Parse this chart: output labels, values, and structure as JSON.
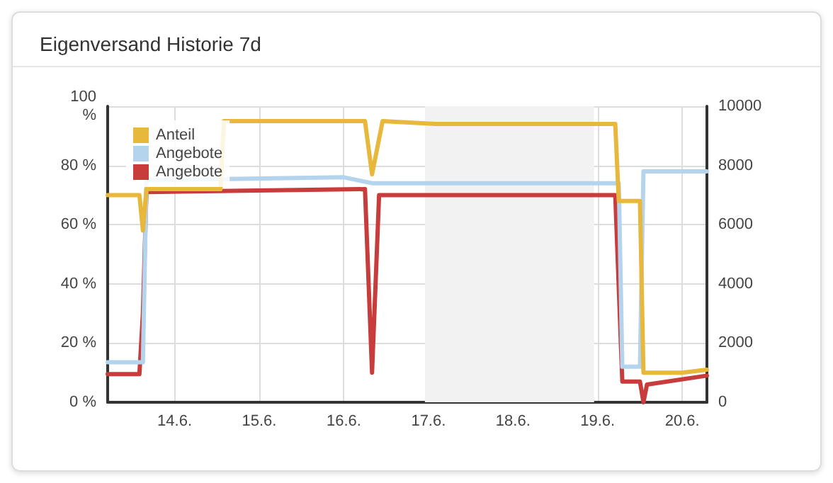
{
  "chart_data": {
    "type": "line",
    "title": "Eigenversand Historie 7d",
    "xlim": [
      "--06-13T05:00",
      "--06-20T07:00"
    ],
    "xticks": [
      {
        "value": "--06-14",
        "label": "14.6."
      },
      {
        "value": "--06-15",
        "label": "15.6."
      },
      {
        "value": "--06-16",
        "label": "16.6."
      },
      {
        "value": "--06-17",
        "label": "17.6."
      },
      {
        "value": "--06-18",
        "label": "18.6."
      },
      {
        "value": "--06-19",
        "label": "19.6."
      },
      {
        "value": "--06-20",
        "label": "20.6."
      }
    ],
    "ylim": [
      0,
      100
    ],
    "yticks": [
      {
        "value": 0,
        "label": "0 %"
      },
      {
        "value": 20,
        "label": "20 %"
      },
      {
        "value": 40,
        "label": "40 %"
      },
      {
        "value": 60,
        "label": "60 %"
      },
      {
        "value": 80,
        "label": "80 %"
      },
      {
        "value": 100,
        "label": "100 %"
      }
    ],
    "y2lim": [
      0,
      10000
    ],
    "y2ticks": [
      0,
      2000,
      4000,
      6000,
      8000,
      10000
    ],
    "grid": true,
    "legend": "top left",
    "marker": "none",
    "bands": [
      {
        "axis": "x",
        "from": "--06-16T23:00",
        "to": "--06-18T23:00",
        "color": "#f2f2f2"
      }
    ],
    "series": [
      {
        "name": "Anteil",
        "color": "#e8b83c",
        "x": [
          "--06-13T05:00",
          "--06-13T14:00",
          "--06-13T15:00",
          "--06-13T16:00",
          "--06-14T13:00",
          "--06-14T14:00",
          "--06-16T06:00",
          "--06-16T08:00",
          "--06-16T11:00",
          "--06-17T02:00",
          "--06-19T05:00",
          "--06-19T06:00",
          "--06-19T12:00",
          "--06-19T13:00",
          "--06-20T00:00",
          "--06-20T07:00"
        ],
        "values": [
          70,
          70,
          58,
          72,
          72,
          95,
          95,
          77,
          95,
          94,
          94,
          68,
          68,
          10,
          10,
          11
        ]
      },
      {
        "name": "Angebote",
        "color": "#b4d4ee",
        "axis": "y2",
        "x": [
          "--06-13T05:00",
          "--06-13T15:00",
          "--06-13T16:00",
          "--06-16T00:00",
          "--06-16T08:00",
          "--06-19T06:00",
          "--06-19T07:00",
          "--06-19T12:00",
          "--06-19T13:00",
          "--06-20T07:00"
        ],
        "values": [
          1350,
          1350,
          7500,
          7600,
          7400,
          7400,
          1200,
          1200,
          7800,
          7800
        ]
      },
      {
        "name": "Angebote",
        "color": "#c83c3c",
        "axis": "y2",
        "x": [
          "--06-13T05:00",
          "--06-13T14:00",
          "--06-13T15:00",
          "--06-13T16:00",
          "--06-16T06:00",
          "--06-16T08:00",
          "--06-16T10:00",
          "--06-19T05:00",
          "--06-19T07:00",
          "--06-19T12:00",
          "--06-19T13:00",
          "--06-19T14:00",
          "--06-20T07:00"
        ],
        "values": [
          950,
          950,
          3000,
          7100,
          7200,
          1000,
          7000,
          7000,
          700,
          700,
          0,
          600,
          900
        ]
      }
    ]
  }
}
